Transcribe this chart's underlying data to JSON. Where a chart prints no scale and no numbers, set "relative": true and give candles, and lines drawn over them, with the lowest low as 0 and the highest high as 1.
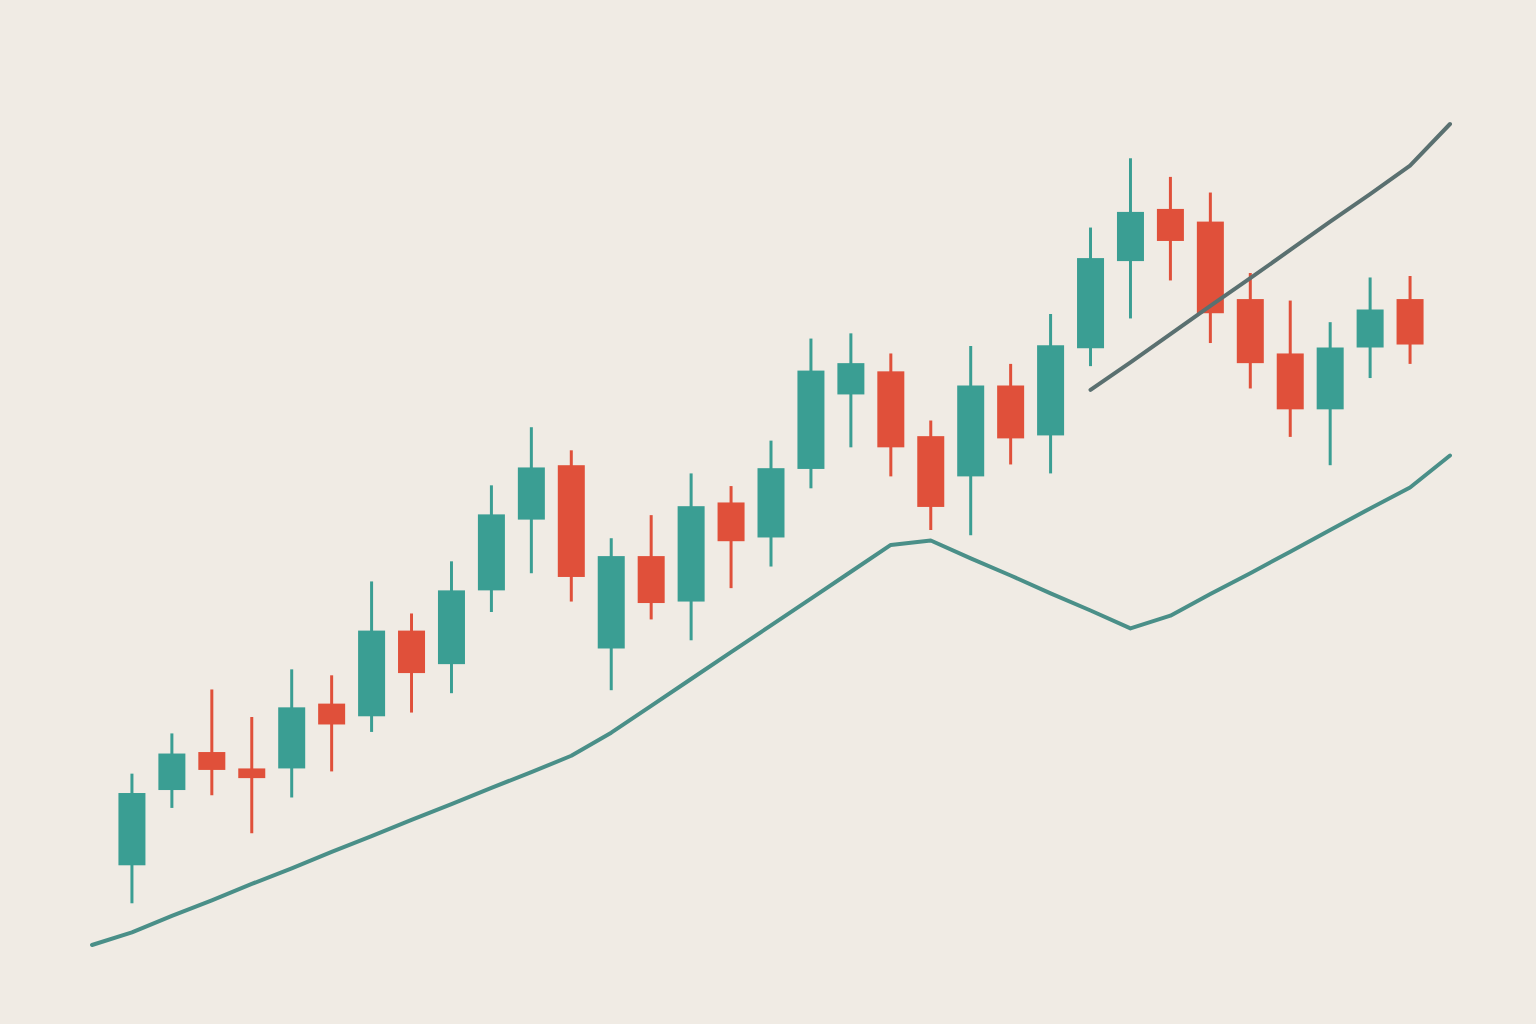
{
  "chart_data": {
    "type": "candlestick",
    "relative": true,
    "categories": [
      null,
      null,
      null,
      null,
      null,
      null,
      null,
      null,
      null,
      null,
      null,
      null,
      null,
      null,
      null,
      null,
      null,
      null,
      null,
      null,
      null,
      null,
      null,
      null,
      null,
      null,
      null,
      null,
      null,
      null,
      null,
      null,
      null,
      null,
      null
    ],
    "ohlc": [
      null,
      [
        0.051,
        0.174,
        0,
        0.148
      ],
      [
        0.152,
        0.228,
        0.128,
        0.201
      ],
      [
        0.203,
        0.287,
        0.145,
        0.179
      ],
      [
        0.181,
        0.25,
        0.094,
        0.168
      ],
      [
        0.181,
        0.314,
        0.142,
        0.263
      ],
      [
        0.268,
        0.306,
        0.177,
        0.24
      ],
      [
        0.251,
        0.432,
        0.23,
        0.366
      ],
      [
        0.366,
        0.389,
        0.256,
        0.309
      ],
      [
        0.321,
        0.459,
        0.282,
        0.42
      ],
      [
        0.42,
        0.561,
        0.391,
        0.522
      ],
      [
        0.515,
        0.639,
        0.443,
        0.585
      ],
      [
        0.588,
        0.608,
        0.405,
        0.438
      ],
      [
        0.342,
        0.49,
        0.286,
        0.466
      ],
      [
        0.466,
        0.521,
        0.381,
        0.403
      ],
      [
        0.405,
        0.577,
        0.353,
        0.533
      ],
      [
        0.538,
        0.56,
        0.423,
        0.486
      ],
      [
        0.491,
        0.621,
        0.452,
        0.584
      ],
      [
        0.583,
        0.758,
        0.557,
        0.715
      ],
      [
        0.683,
        0.765,
        0.612,
        0.725
      ],
      [
        0.714,
        0.738,
        0.573,
        0.612
      ],
      [
        0.627,
        0.648,
        0.501,
        0.532
      ],
      [
        0.573,
        0.748,
        0.494,
        0.695
      ],
      [
        0.695,
        0.724,
        0.589,
        0.624
      ],
      [
        0.628,
        0.791,
        0.577,
        0.749
      ],
      [
        0.745,
        0.907,
        0.721,
        0.866
      ],
      [
        0.862,
        1,
        0.785,
        0.928
      ],
      [
        0.932,
        0.975,
        0.836,
        0.889
      ],
      [
        0.915,
        0.954,
        0.752,
        0.792
      ],
      [
        0.811,
        0.846,
        0.691,
        0.725
      ],
      [
        0.738,
        0.809,
        0.626,
        0.663
      ],
      [
        0.663,
        0.78,
        0.588,
        0.746
      ],
      [
        0.746,
        0.84,
        0.705,
        0.797
      ],
      [
        0.811,
        0.842,
        0.724,
        0.75
      ],
      null
    ],
    "colors": [
      null,
      "#3a9e93",
      "#3a9e93",
      "#e0503a",
      "#e0503a",
      "#3a9e93",
      "#e0503a",
      "#3a9e93",
      "#e0503a",
      "#3a9e93",
      "#3a9e93",
      "#3a9e93",
      "#e0503a",
      "#3a9e93",
      "#e0503a",
      "#3a9e93",
      "#e0503a",
      "#3a9e93",
      "#3a9e93",
      "#3a9e93",
      "#e0503a",
      "#e0503a",
      "#3a9e93",
      "#e0503a",
      "#3a9e93",
      "#3a9e93",
      "#3a9e93",
      "#e0503a",
      "#e0503a",
      "#e0503a",
      "#e0503a",
      "#3a9e93",
      "#3a9e93",
      "#e0503a",
      null
    ],
    "series": [
      {
        "type": "line",
        "color": "#4a8f88",
        "values": [
          -0.056,
          -0.039,
          -0.017,
          0.004,
          0.026,
          0.047,
          0.069,
          0.09,
          0.112,
          0.133,
          0.155,
          0.176,
          0.198,
          0.229,
          0.265,
          0.301,
          0.337,
          0.373,
          0.409,
          0.445,
          0.481,
          0.487,
          0.463,
          0.44,
          0.416,
          0.393,
          0.369,
          0.386,
          0.415,
          0.443,
          0.472,
          0.501,
          0.53,
          0.558,
          0.601
        ]
      },
      {
        "type": "line",
        "color": "#5a7070",
        "values": [
          null,
          null,
          null,
          null,
          null,
          null,
          null,
          null,
          null,
          null,
          null,
          null,
          null,
          null,
          null,
          null,
          null,
          null,
          null,
          null,
          null,
          null,
          null,
          null,
          null,
          0.689,
          0.726,
          0.764,
          0.802,
          0.839,
          0.877,
          0.915,
          0.952,
          0.99,
          1.046
        ]
      }
    ]
  }
}
